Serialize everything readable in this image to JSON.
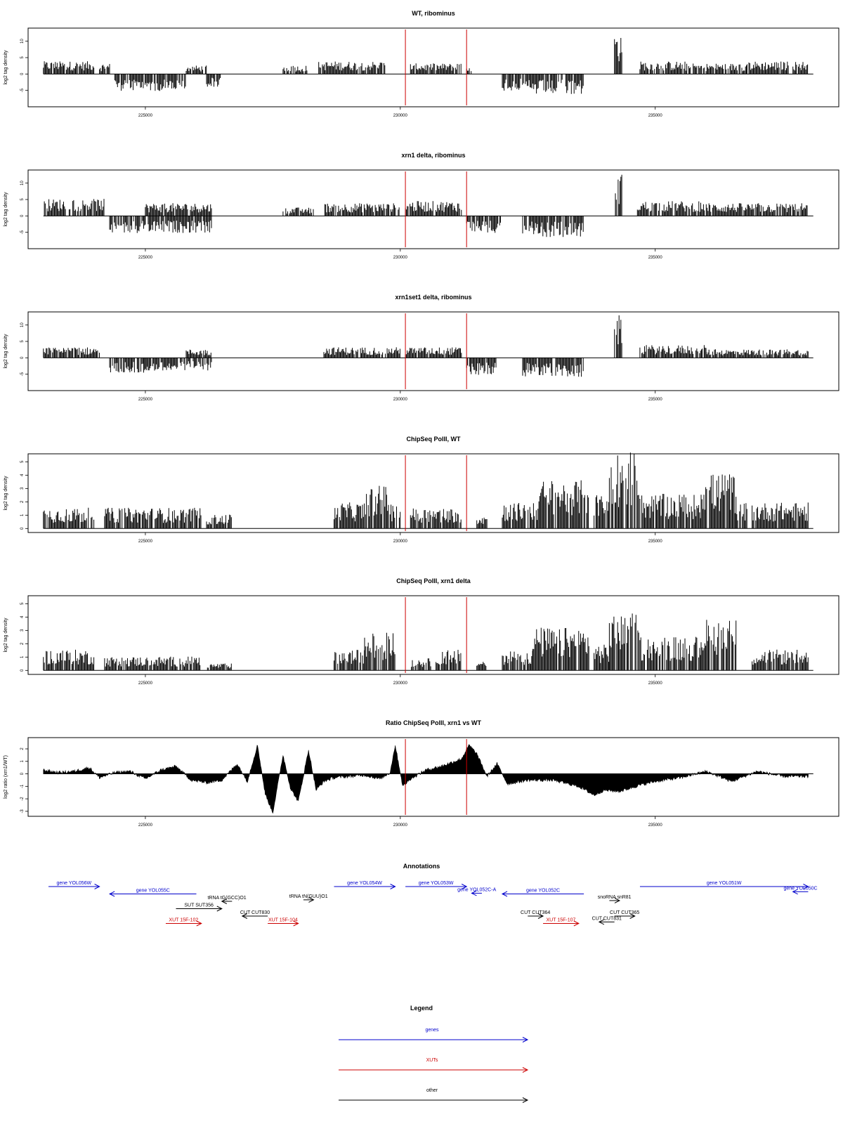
{
  "figure": {
    "annotations_title": "Annotations",
    "legend_title": "Legend"
  },
  "chart_data": [
    {
      "id": "wt",
      "type": "bar",
      "title": "WT, ribominus",
      "ylabel": "log2 tag density",
      "xlim": [
        222700,
        238600
      ],
      "ylim": [
        -10,
        14
      ],
      "xticks": [
        225000,
        230000,
        235000
      ],
      "yticks": [
        -5,
        0,
        5,
        10
      ],
      "vlines": [
        230100,
        231300
      ],
      "vline_color": "#cc0000",
      "profile": [
        {
          "start": 223000,
          "end": 224000,
          "value": 3
        },
        {
          "start": 224100,
          "end": 224300,
          "value": 2.5
        },
        {
          "start": 224400,
          "end": 225800,
          "value": -4
        },
        {
          "start": 225800,
          "end": 226200,
          "value": 2
        },
        {
          "start": 226200,
          "end": 226500,
          "value": -3
        },
        {
          "start": 227700,
          "end": 228200,
          "value": 2
        },
        {
          "start": 228400,
          "end": 229700,
          "value": 3
        },
        {
          "start": 230200,
          "end": 231200,
          "value": 2.5
        },
        {
          "start": 231300,
          "end": 231400,
          "value": 1.5
        },
        {
          "start": 232000,
          "end": 232400,
          "value": -4
        },
        {
          "start": 232400,
          "end": 233600,
          "value": -5
        },
        {
          "start": 234200,
          "end": 234350,
          "value": 10
        },
        {
          "start": 234700,
          "end": 235600,
          "value": 3
        },
        {
          "start": 235600,
          "end": 236800,
          "value": 2.5
        },
        {
          "start": 236800,
          "end": 238000,
          "value": 3
        }
      ]
    },
    {
      "id": "xrn1",
      "type": "bar",
      "title": "xrn1 delta, ribominus",
      "ylabel": "log2 tag density",
      "xlim": [
        222700,
        238600
      ],
      "ylim": [
        -10,
        14
      ],
      "xticks": [
        225000,
        230000,
        235000
      ],
      "yticks": [
        -5,
        0,
        5,
        10
      ],
      "vlines": [
        230100,
        231300
      ],
      "vline_color": "#cc0000",
      "profile": [
        {
          "start": 223000,
          "end": 224200,
          "value": 4
        },
        {
          "start": 224300,
          "end": 225000,
          "value": -4
        },
        {
          "start": 225000,
          "end": 226300,
          "value": 3
        },
        {
          "start": 225000,
          "end": 226300,
          "value": -4
        },
        {
          "start": 227700,
          "end": 228300,
          "value": 2
        },
        {
          "start": 228500,
          "end": 230000,
          "value": 3
        },
        {
          "start": 230100,
          "end": 231200,
          "value": 3.5
        },
        {
          "start": 231300,
          "end": 232000,
          "value": -4
        },
        {
          "start": 232400,
          "end": 233600,
          "value": -5
        },
        {
          "start": 234200,
          "end": 234350,
          "value": 10
        },
        {
          "start": 234650,
          "end": 236000,
          "value": 3.5
        },
        {
          "start": 236000,
          "end": 238000,
          "value": 3
        }
      ]
    },
    {
      "id": "xrn1set1",
      "type": "bar",
      "title": "xrn1set1 delta, ribominus",
      "ylabel": "log2 tag density",
      "xlim": [
        222700,
        238600
      ],
      "ylim": [
        -10,
        14
      ],
      "xticks": [
        225000,
        230000,
        235000
      ],
      "yticks": [
        -5,
        0,
        5,
        10
      ],
      "vlines": [
        230100,
        231300
      ],
      "vline_color": "#cc0000",
      "profile": [
        {
          "start": 223000,
          "end": 224100,
          "value": 2.5
        },
        {
          "start": 224300,
          "end": 225000,
          "value": -3.5
        },
        {
          "start": 225000,
          "end": 226300,
          "value": -3
        },
        {
          "start": 225800,
          "end": 226300,
          "value": 2
        },
        {
          "start": 228500,
          "end": 230000,
          "value": 2.5
        },
        {
          "start": 230100,
          "end": 231200,
          "value": 2.5
        },
        {
          "start": 231300,
          "end": 231900,
          "value": -4
        },
        {
          "start": 232400,
          "end": 233600,
          "value": -4.5
        },
        {
          "start": 234200,
          "end": 234350,
          "value": 10
        },
        {
          "start": 234700,
          "end": 236000,
          "value": 3
        },
        {
          "start": 236000,
          "end": 238000,
          "value": 2
        }
      ]
    },
    {
      "id": "chip_wt",
      "type": "bar",
      "title": "ChipSeq PolII, WT",
      "ylabel": "log2 tag density",
      "xlim": [
        222700,
        238600
      ],
      "ylim": [
        -0.3,
        5.6
      ],
      "xticks": [
        225000,
        230000,
        235000
      ],
      "yticks": [
        0,
        1,
        2,
        3,
        4,
        5
      ],
      "vlines": [
        230100,
        231300
      ],
      "vline_color": "#cc0000",
      "profile": [
        {
          "start": 223000,
          "end": 224000,
          "value": 1.2
        },
        {
          "start": 224200,
          "end": 226100,
          "value": 1.2
        },
        {
          "start": 226200,
          "end": 226700,
          "value": 0.8
        },
        {
          "start": 228700,
          "end": 229300,
          "value": 1.5
        },
        {
          "start": 229300,
          "end": 229800,
          "value": 2.5
        },
        {
          "start": 229800,
          "end": 230000,
          "value": 1.5
        },
        {
          "start": 230200,
          "end": 231200,
          "value": 1.2
        },
        {
          "start": 231500,
          "end": 231700,
          "value": 0.8
        },
        {
          "start": 232000,
          "end": 232700,
          "value": 1.5
        },
        {
          "start": 232700,
          "end": 233700,
          "value": 2.8
        },
        {
          "start": 233800,
          "end": 234100,
          "value": 2
        },
        {
          "start": 234100,
          "end": 234700,
          "value": 4.5
        },
        {
          "start": 234700,
          "end": 235900,
          "value": 2
        },
        {
          "start": 235900,
          "end": 236600,
          "value": 3.2
        },
        {
          "start": 236600,
          "end": 236800,
          "value": 1.5
        },
        {
          "start": 236900,
          "end": 238000,
          "value": 1.5
        }
      ]
    },
    {
      "id": "chip_xrn1",
      "type": "bar",
      "title": "ChipSeq PolII, xrn1 delta",
      "ylabel": "log2 tag density",
      "xlim": [
        222700,
        238600
      ],
      "ylim": [
        -0.3,
        5.6
      ],
      "xticks": [
        225000,
        230000,
        235000
      ],
      "yticks": [
        0,
        1,
        2,
        3,
        4,
        5
      ],
      "vlines": [
        230100,
        231300
      ],
      "vline_color": "#cc0000",
      "profile": [
        {
          "start": 223000,
          "end": 224000,
          "value": 1.2
        },
        {
          "start": 224200,
          "end": 226100,
          "value": 0.8
        },
        {
          "start": 226200,
          "end": 226700,
          "value": 0.4
        },
        {
          "start": 228700,
          "end": 229300,
          "value": 1.2
        },
        {
          "start": 229300,
          "end": 229900,
          "value": 2.2
        },
        {
          "start": 230200,
          "end": 230600,
          "value": 0.7
        },
        {
          "start": 230700,
          "end": 231200,
          "value": 1.2
        },
        {
          "start": 231500,
          "end": 231700,
          "value": 0.6
        },
        {
          "start": 232000,
          "end": 232600,
          "value": 1.2
        },
        {
          "start": 232600,
          "end": 233700,
          "value": 2.5
        },
        {
          "start": 233800,
          "end": 234100,
          "value": 1.5
        },
        {
          "start": 234100,
          "end": 234700,
          "value": 3.3
        },
        {
          "start": 234700,
          "end": 235900,
          "value": 2
        },
        {
          "start": 235900,
          "end": 236600,
          "value": 3
        },
        {
          "start": 236900,
          "end": 238000,
          "value": 1.2
        }
      ]
    },
    {
      "id": "ratio",
      "type": "area",
      "title": "Ratio ChipSeq PolII, xrn1 vs WT",
      "ylabel": "log2 ratio (xrn1/WT)",
      "xlim": [
        222700,
        238600
      ],
      "ylim": [
        -3.4,
        2.9
      ],
      "xticks": [
        225000,
        230000,
        235000
      ],
      "yticks": [
        -3,
        -2,
        -1,
        0,
        1,
        2
      ],
      "vlines": [
        230100,
        231300
      ],
      "vline_color": "#cc0000",
      "points": [
        [
          223000,
          0.3
        ],
        [
          223300,
          0.1
        ],
        [
          223600,
          0.2
        ],
        [
          223900,
          0.5
        ],
        [
          224100,
          -0.3
        ],
        [
          224400,
          0.1
        ],
        [
          224700,
          0.2
        ],
        [
          225000,
          -0.4
        ],
        [
          225300,
          0.3
        ],
        [
          225600,
          0.6
        ],
        [
          225900,
          -0.5
        ],
        [
          226200,
          -0.7
        ],
        [
          226500,
          -0.5
        ],
        [
          226800,
          0.8
        ],
        [
          227000,
          -0.6
        ],
        [
          227200,
          2.3
        ],
        [
          227350,
          -1.6
        ],
        [
          227500,
          -3.1
        ],
        [
          227700,
          1.5
        ],
        [
          227850,
          -1.2
        ],
        [
          228000,
          -2.2
        ],
        [
          228200,
          1.9
        ],
        [
          228350,
          -1.3
        ],
        [
          228500,
          -0.6
        ],
        [
          228700,
          -0.3
        ],
        [
          229000,
          -0.2
        ],
        [
          229300,
          -0.1
        ],
        [
          229600,
          -0.4
        ],
        [
          229800,
          0.1
        ],
        [
          229900,
          2.3
        ],
        [
          230050,
          -1.0
        ],
        [
          230200,
          -0.4
        ],
        [
          230500,
          0.3
        ],
        [
          230800,
          0.6
        ],
        [
          231000,
          0.9
        ],
        [
          231200,
          1.2
        ],
        [
          231350,
          2.3
        ],
        [
          231500,
          1.6
        ],
        [
          231700,
          -0.2
        ],
        [
          231900,
          0.8
        ],
        [
          232100,
          -0.8
        ],
        [
          232500,
          -0.5
        ],
        [
          233000,
          -0.5
        ],
        [
          233500,
          -1.0
        ],
        [
          233800,
          -1.7
        ],
        [
          234000,
          -1.3
        ],
        [
          234300,
          -1.4
        ],
        [
          234700,
          -0.9
        ],
        [
          235000,
          -0.6
        ],
        [
          235500,
          -0.3
        ],
        [
          236000,
          0.2
        ],
        [
          236500,
          -0.6
        ],
        [
          237000,
          0.2
        ],
        [
          237500,
          -0.2
        ],
        [
          238000,
          -0.2
        ]
      ]
    }
  ],
  "annotations": {
    "xlim": [
      222700,
      238600
    ],
    "items": [
      {
        "label": "gene YOL056W",
        "start": 223100,
        "end": 224100,
        "strand": "+",
        "row": 0,
        "kind": "genes"
      },
      {
        "label": "gene YOL055C",
        "start": 224300,
        "end": 226000,
        "strand": "-",
        "row": 1,
        "kind": "genes"
      },
      {
        "label": "tRNA tG(GCC)O1",
        "start": 226500,
        "end": 226700,
        "strand": "-",
        "row": 2,
        "kind": "other"
      },
      {
        "label": "SUT SUT356",
        "start": 225600,
        "end": 226500,
        "strand": "+",
        "row": 3,
        "kind": "other"
      },
      {
        "label": "XUT 15F-102",
        "start": 225400,
        "end": 226100,
        "strand": "+",
        "row": 5,
        "kind": "XUTs"
      },
      {
        "label": "CUT CUT830",
        "start": 226900,
        "end": 227400,
        "strand": "-",
        "row": 4,
        "kind": "other"
      },
      {
        "label": "XUT 15F-104",
        "start": 227400,
        "end": 228000,
        "strand": "+",
        "row": 5,
        "kind": "XUTs"
      },
      {
        "label": "tRNA tN(GUU)O1",
        "start": 228100,
        "end": 228300,
        "strand": "+",
        "row": 1.8,
        "kind": "other"
      },
      {
        "label": "gene YOL054W",
        "start": 228700,
        "end": 229900,
        "strand": "+",
        "row": 0,
        "kind": "genes"
      },
      {
        "label": "gene YOL053W",
        "start": 230100,
        "end": 231300,
        "strand": "+",
        "row": 0,
        "kind": "genes"
      },
      {
        "label": "gene YOL052C-A",
        "start": 231400,
        "end": 231600,
        "strand": "-",
        "row": 0.9,
        "kind": "genes"
      },
      {
        "label": "gene YOL052C",
        "start": 232000,
        "end": 233600,
        "strand": "-",
        "row": 1,
        "kind": "genes"
      },
      {
        "label": "CUT CUT364",
        "start": 232500,
        "end": 232800,
        "strand": "+",
        "row": 4,
        "kind": "other"
      },
      {
        "label": "XUT 15F-107",
        "start": 232800,
        "end": 233500,
        "strand": "+",
        "row": 5,
        "kind": "XUTs"
      },
      {
        "label": "snoRNA snR81",
        "start": 234100,
        "end": 234300,
        "strand": "+",
        "row": 1.9,
        "kind": "other"
      },
      {
        "label": "CUT CUT365",
        "start": 234200,
        "end": 234600,
        "strand": "+",
        "row": 4,
        "kind": "other"
      },
      {
        "label": "CUT CUT831",
        "start": 233900,
        "end": 234200,
        "strand": "-",
        "row": 4.8,
        "kind": "other"
      },
      {
        "label": "gene YOL051W",
        "start": 234700,
        "end": 238000,
        "strand": "+",
        "row": 0,
        "kind": "genes"
      },
      {
        "label": "gene YOL050C",
        "start": 237700,
        "end": 238000,
        "strand": "-",
        "row": 0.7,
        "kind": "genes"
      }
    ]
  },
  "legend": {
    "items": [
      {
        "label": "genes",
        "color": "#0000cc"
      },
      {
        "label": "XUTs",
        "color": "#cc0000"
      },
      {
        "label": "other",
        "color": "#000000"
      }
    ]
  },
  "colors": {
    "genes": "#0000cc",
    "XUTs": "#cc0000",
    "other": "#000000"
  }
}
